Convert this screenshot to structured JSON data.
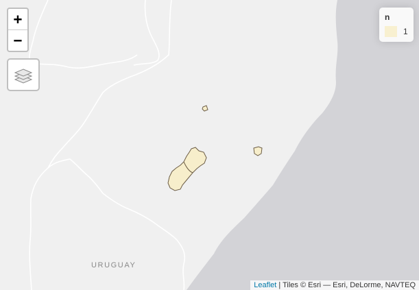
{
  "zoom": {
    "in_label": "+",
    "out_label": "−"
  },
  "layers_control": {
    "icon": "layers-icon"
  },
  "legend": {
    "title": "n",
    "items": [
      {
        "label": "1",
        "color": "#f7eecb"
      }
    ]
  },
  "attribution": {
    "leaflet_link": "Leaflet",
    "text": " | Tiles © Esri — Esri, DeLorme, NAVTEQ"
  },
  "map": {
    "place_labels": {
      "uruguay": "URUGUAY"
    },
    "colors": {
      "land": "#f0f0f0",
      "water": "#d4d4d8",
      "boundary": "#ffffff",
      "region_fill": "#f7eecb",
      "region_stroke": "#6b5c45"
    }
  }
}
